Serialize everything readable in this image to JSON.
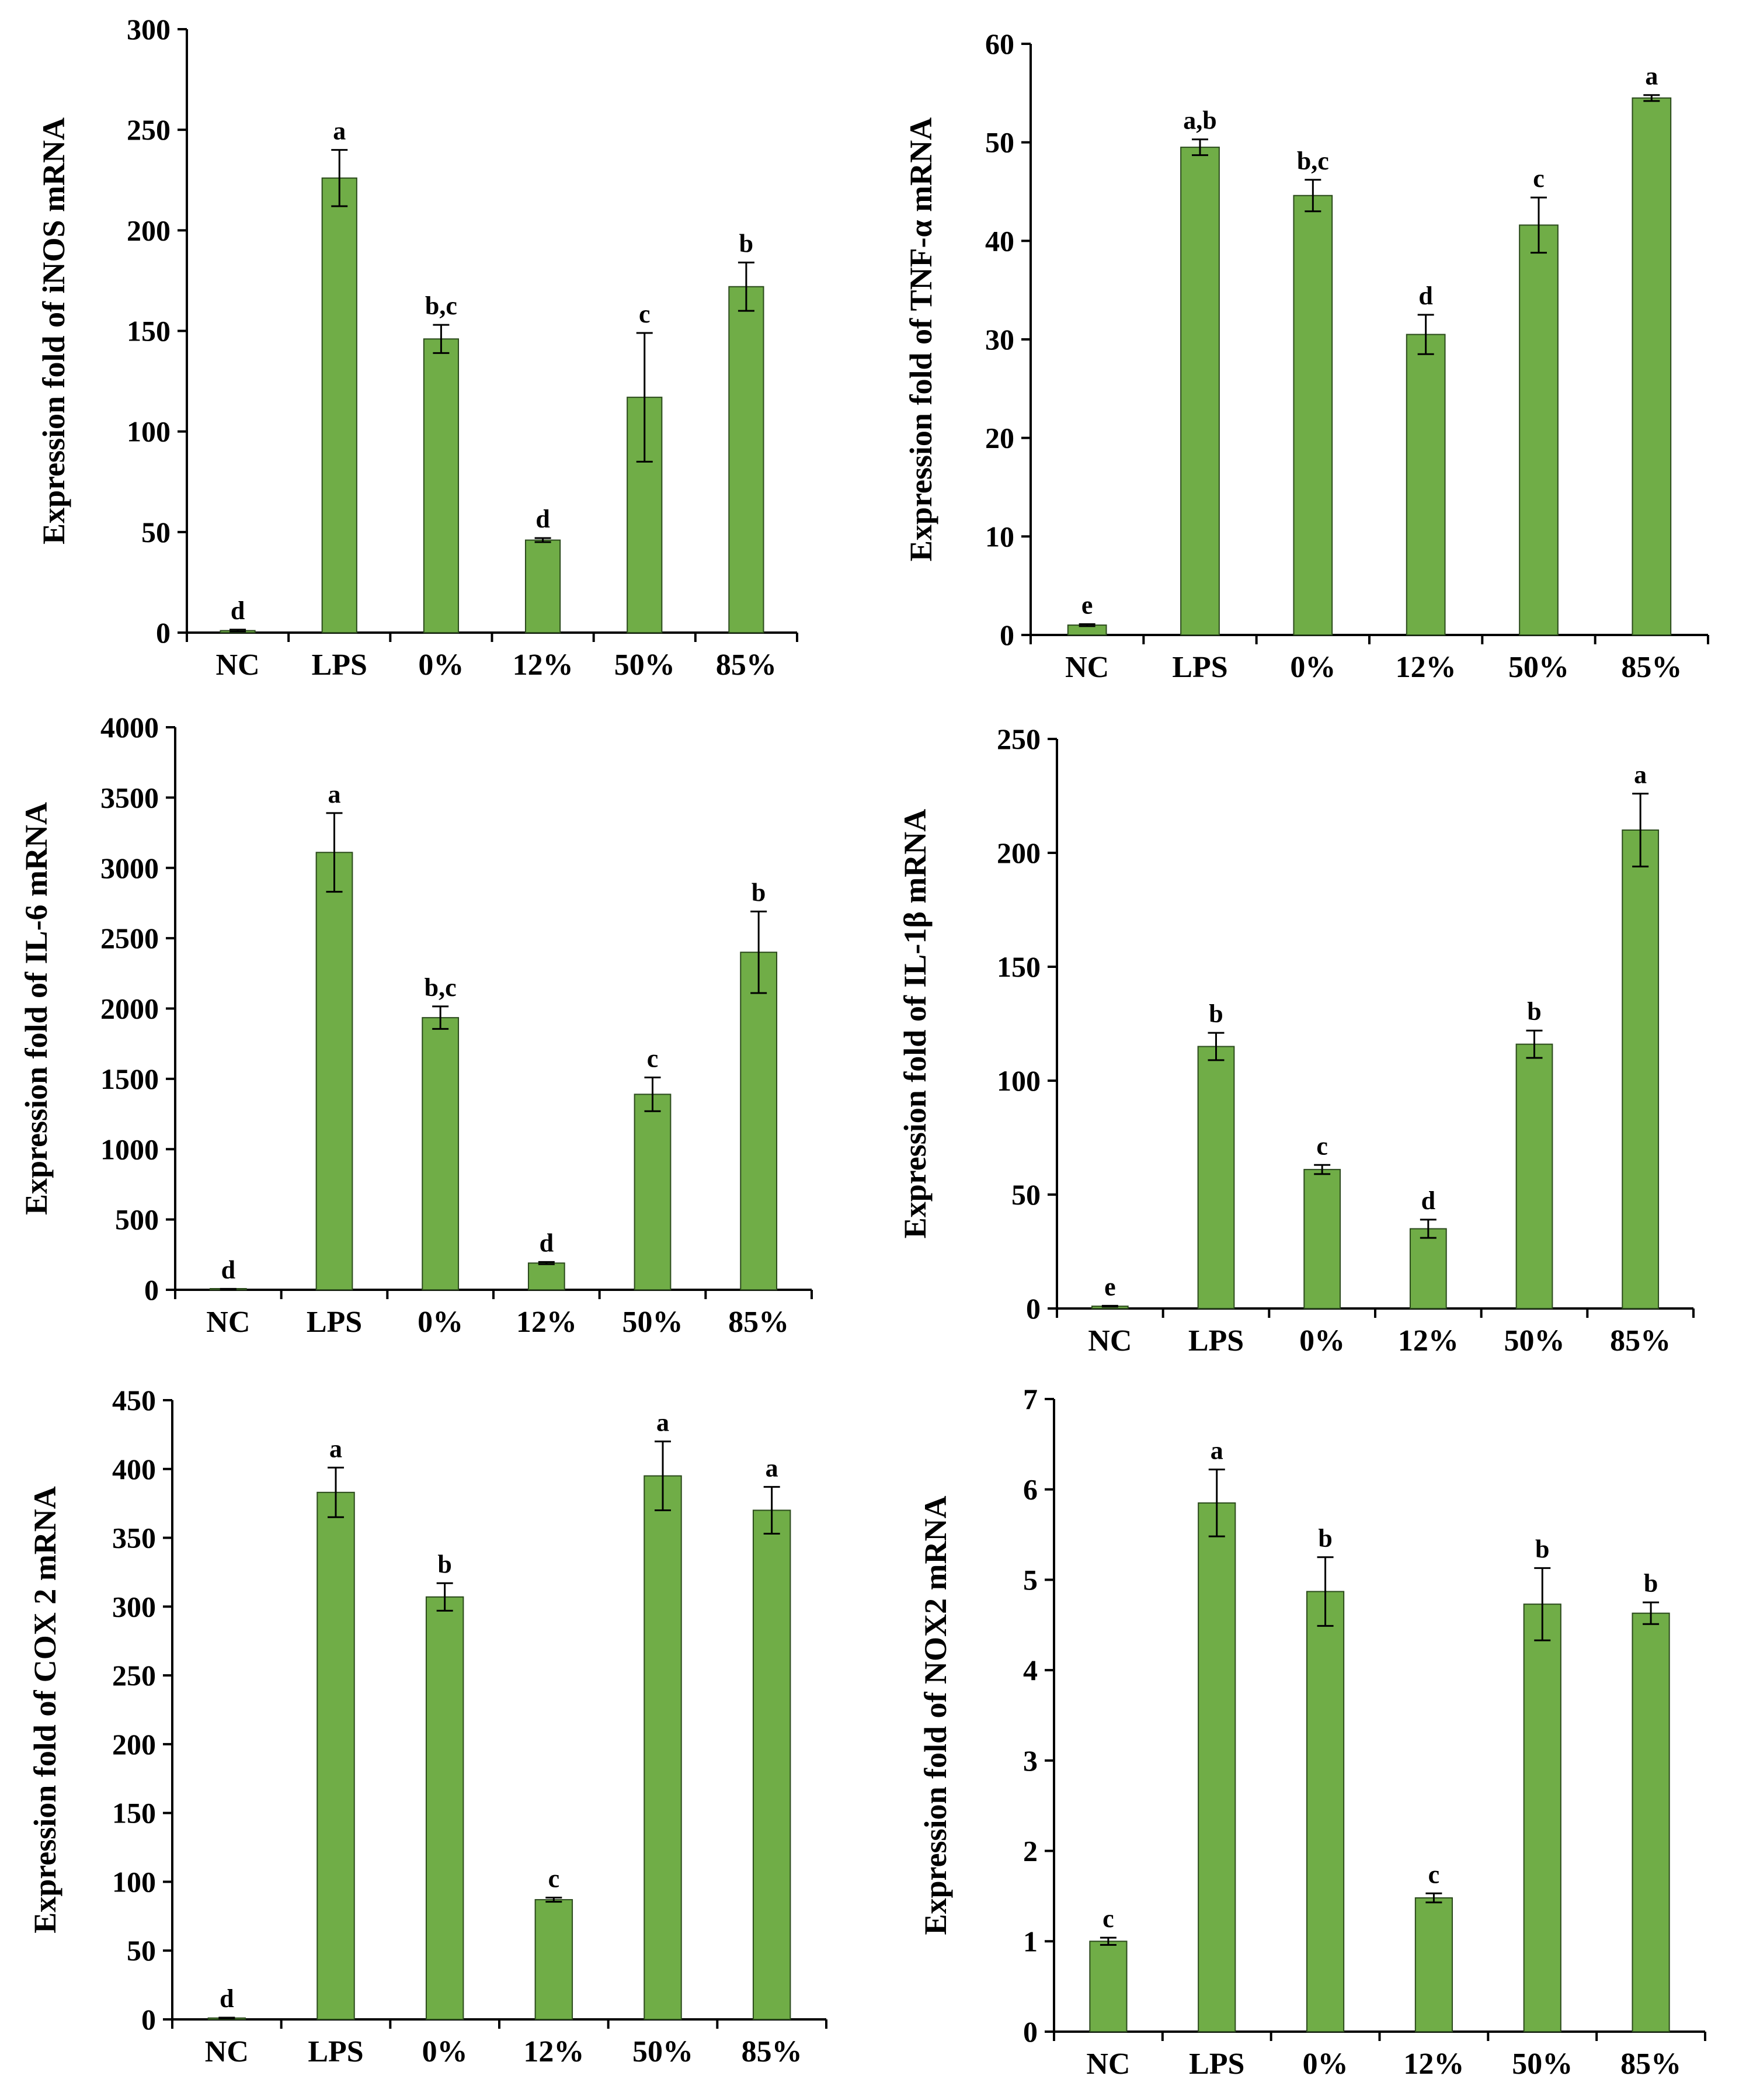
{
  "colors": {
    "bar_fill": "#70ad47",
    "bar_stroke": "#2b4a1c",
    "axis": "#000000"
  },
  "chart_data": [
    {
      "type": "bar",
      "categories": [
        "NC",
        "LPS",
        "0%",
        "12%",
        "50%",
        "85%"
      ],
      "values": [
        1,
        226,
        146,
        46,
        117,
        172
      ],
      "errors": [
        0.5,
        14,
        7,
        1,
        32,
        12
      ],
      "significance": [
        "d",
        "a",
        "b,c",
        "d",
        "c",
        "b"
      ],
      "ylabel": "Expression fold of iNOS mRNA",
      "ylim": [
        0,
        300
      ],
      "yticks": [
        0,
        50,
        100,
        150,
        200,
        250,
        300
      ],
      "ytick_labels": [
        "0",
        "50",
        "100",
        "150",
        "200",
        "250",
        "300"
      ]
    },
    {
      "type": "bar",
      "categories": [
        "NC",
        "LPS",
        "0%",
        "12%",
        "50%",
        "85%"
      ],
      "values": [
        1,
        49.5,
        44.6,
        30.5,
        41.6,
        54.5
      ],
      "errors": [
        0.1,
        0.8,
        1.6,
        2.0,
        2.8,
        0.3
      ],
      "significance": [
        "e",
        "a,b",
        "b,c",
        "d",
        "c",
        "a"
      ],
      "ylabel": "Expression fold of TNF-α mRNA",
      "ylim": [
        0,
        60
      ],
      "yticks": [
        0,
        10,
        20,
        30,
        40,
        50,
        60
      ],
      "ytick_labels": [
        "0",
        "10",
        "20",
        "30",
        "40",
        "50",
        "60"
      ]
    },
    {
      "type": "bar",
      "categories": [
        "NC",
        "LPS",
        "0%",
        "12%",
        "50%",
        "85%"
      ],
      "values": [
        5,
        3110,
        1935,
        190,
        1390,
        2400
      ],
      "errors": [
        2,
        280,
        80,
        8,
        120,
        290
      ],
      "significance": [
        "d",
        "a",
        "b,c",
        "d",
        "c",
        "b"
      ],
      "ylabel": "Expression fold of IL-6 mRNA",
      "ylim": [
        0,
        4000
      ],
      "yticks": [
        0,
        500,
        1000,
        1500,
        2000,
        2500,
        3000,
        3500,
        4000
      ],
      "ytick_labels": [
        "0",
        "500",
        "1000",
        "1500",
        "2000",
        "2500",
        "3000",
        "3500",
        "4000"
      ]
    },
    {
      "type": "bar",
      "categories": [
        "NC",
        "LPS",
        "0%",
        "12%",
        "50%",
        "85%"
      ],
      "values": [
        1,
        115,
        61,
        35,
        116,
        210
      ],
      "errors": [
        0.2,
        6,
        2,
        4,
        6,
        16
      ],
      "significance": [
        "e",
        "b",
        "c",
        "d",
        "b",
        "a"
      ],
      "ylabel": "Expression fold of IL-1β  mRNA",
      "ylim": [
        0,
        250
      ],
      "yticks": [
        0,
        50,
        100,
        150,
        200,
        250
      ],
      "ytick_labels": [
        "0",
        "50",
        "100",
        "150",
        "200",
        "250"
      ]
    },
    {
      "type": "bar",
      "categories": [
        "NC",
        "LPS",
        "0%",
        "12%",
        "50%",
        "85%"
      ],
      "values": [
        1,
        383,
        307,
        87,
        395,
        370
      ],
      "errors": [
        0.3,
        18,
        10,
        1.5,
        25,
        17
      ],
      "significance": [
        "d",
        "a",
        "b",
        "c",
        "a",
        "a"
      ],
      "ylabel": "Expression fold of COX 2  mRNA",
      "ylim": [
        0,
        450
      ],
      "yticks": [
        0,
        50,
        100,
        150,
        200,
        250,
        300,
        350,
        400,
        450
      ],
      "ytick_labels": [
        "0",
        "50",
        "100",
        "150",
        "200",
        "250",
        "300",
        "350",
        "400",
        "450"
      ]
    },
    {
      "type": "bar",
      "categories": [
        "NC",
        "LPS",
        "0%",
        "12%",
        "50%",
        "85%"
      ],
      "values": [
        1.0,
        5.85,
        4.87,
        1.48,
        4.73,
        4.63
      ],
      "errors": [
        0.04,
        0.37,
        0.38,
        0.05,
        0.4,
        0.12
      ],
      "significance": [
        "c",
        "a",
        "b",
        "c",
        "b",
        "b"
      ],
      "ylabel": "Expression fold of  NOX2  mRNA",
      "ylim": [
        0,
        7
      ],
      "yticks": [
        0,
        1,
        2,
        3,
        4,
        5,
        6,
        7
      ],
      "ytick_labels": [
        "0",
        "1",
        "2",
        "3",
        "4",
        "5",
        "6",
        "7"
      ]
    }
  ]
}
